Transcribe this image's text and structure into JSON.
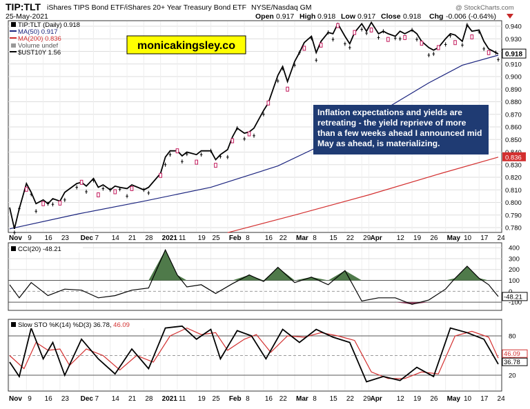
{
  "header": {
    "symbol": "TIP:TLT",
    "description": "iShares TIPS Bond ETF/iShares 20+ Year Treasury Bond ETF",
    "exchange": "NYSE/Nasdaq GM",
    "date": "25-May-2021",
    "watermark": "@ StockCharts.com",
    "open_label": "Open",
    "open": "0.917",
    "high_label": "High",
    "high": "0.918",
    "low_label": "Low",
    "low": "0.917",
    "close_label": "Close",
    "close": "0.918",
    "chg_label": "Chg",
    "chg": "-0.006 (-0.64%)"
  },
  "legend": [
    {
      "text": "TIP:TLT (Daily) 0.918",
      "color": "#000000"
    },
    {
      "text": "MA(50) 0.917",
      "color": "#1a237e"
    },
    {
      "text": "MA(200) 0.836",
      "color": "#d32f2f"
    },
    {
      "text": "Volume undef",
      "color": "#888888"
    },
    {
      "text": "$UST10Y 1.56",
      "color": "#000000"
    }
  ],
  "badge": "monicakingsley.co",
  "annotation": "Inflation expectations and yields are retreating - the yield reprieve of more than a few weeks ahead I announced mid May as ahead, is materializing.",
  "price_axis": {
    "ticks": [
      "0.940",
      "0.930",
      "0.920",
      "0.910",
      "0.900",
      "0.890",
      "0.880",
      "0.870",
      "0.860",
      "0.850",
      "0.840",
      "0.830",
      "0.820",
      "0.810",
      "0.800",
      "0.790",
      "0.780"
    ],
    "last_price_tag": "0.918",
    "ma200_tag": "0.836"
  },
  "x_axis": {
    "labels": [
      "Nov",
      "9",
      "16",
      "23",
      "Dec",
      "7",
      "14",
      "21",
      "28",
      "2021",
      "11",
      "19",
      "25",
      "Feb",
      "8",
      "16",
      "22",
      "Mar",
      "8",
      "15",
      "22",
      "29",
      "Apr",
      "12",
      "19",
      "26",
      "May",
      "10",
      "17",
      "24"
    ],
    "bold": [
      "Nov",
      "Dec",
      "2021",
      "Feb",
      "Mar",
      "Apr",
      "May"
    ]
  },
  "cci": {
    "title": "CCI(20) -48.21",
    "ticks": [
      "400",
      "300",
      "200",
      "100",
      "0",
      "-100"
    ],
    "value_tag": "-48.21"
  },
  "sto": {
    "title_prefix": "Slow STO %K(14) %D(3) 36.78, ",
    "title_d": "46.09",
    "ticks": [
      "80",
      "50",
      "20"
    ],
    "d_tag": "46.09",
    "k_tag": "36.78"
  },
  "colors": {
    "price_line": "#000000",
    "ma50": "#1a237e",
    "ma200": "#d32f2f",
    "badge_bg": "#ffff00",
    "annotation_bg": "#1f3b73",
    "cci_fill": "#4f7a4a",
    "up_candle": "#000000",
    "down_candle": "#c2185b"
  },
  "chart_data": {
    "type": "line",
    "title": "TIP:TLT",
    "ylabel": "",
    "ylim": [
      0.775,
      0.945
    ],
    "x_range": [
      "2020-11-02",
      "2021-05-25"
    ],
    "series": [
      {
        "name": "TIP:TLT (Daily) 0.918",
        "x": [
          "2020-11-02",
          "2020-11-04",
          "2020-11-06",
          "2020-11-09",
          "2020-11-11",
          "2020-11-13",
          "2020-11-16",
          "2020-11-18",
          "2020-11-20",
          "2020-11-23",
          "2020-11-25",
          "2020-11-30",
          "2020-12-02",
          "2020-12-04",
          "2020-12-07",
          "2020-12-09",
          "2020-12-11",
          "2020-12-14",
          "2020-12-16",
          "2020-12-18",
          "2020-12-21",
          "2020-12-23",
          "2020-12-28",
          "2020-12-30",
          "2021-01-04",
          "2021-01-06",
          "2021-01-08",
          "2021-01-11",
          "2021-01-13",
          "2021-01-15",
          "2021-01-19",
          "2021-01-21",
          "2021-01-25",
          "2021-01-27",
          "2021-01-29",
          "2021-02-01",
          "2021-02-03",
          "2021-02-05",
          "2021-02-08",
          "2021-02-10",
          "2021-02-12",
          "2021-02-16",
          "2021-02-18",
          "2021-02-22",
          "2021-02-24",
          "2021-02-26",
          "2021-03-01",
          "2021-03-03",
          "2021-03-05",
          "2021-03-08",
          "2021-03-10",
          "2021-03-12",
          "2021-03-15",
          "2021-03-17",
          "2021-03-19",
          "2021-03-22",
          "2021-03-24",
          "2021-03-26",
          "2021-03-29",
          "2021-03-31",
          "2021-04-02",
          "2021-04-05",
          "2021-04-07",
          "2021-04-09",
          "2021-04-12",
          "2021-04-14",
          "2021-04-16",
          "2021-04-19",
          "2021-04-21",
          "2021-04-23",
          "2021-04-26",
          "2021-04-28",
          "2021-04-30",
          "2021-05-03",
          "2021-05-05",
          "2021-05-07",
          "2021-05-10",
          "2021-05-12",
          "2021-05-14",
          "2021-05-17",
          "2021-05-19",
          "2021-05-21",
          "2021-05-24",
          "2021-05-25"
        ],
        "values": [
          0.796,
          0.779,
          0.795,
          0.815,
          0.808,
          0.799,
          0.802,
          0.799,
          0.803,
          0.801,
          0.808,
          0.815,
          0.816,
          0.813,
          0.819,
          0.812,
          0.814,
          0.81,
          0.813,
          0.812,
          0.811,
          0.814,
          0.81,
          0.812,
          0.823,
          0.836,
          0.841,
          0.841,
          0.837,
          0.84,
          0.838,
          0.841,
          0.841,
          0.834,
          0.838,
          0.842,
          0.852,
          0.859,
          0.855,
          0.856,
          0.859,
          0.873,
          0.879,
          0.901,
          0.908,
          0.896,
          0.912,
          0.919,
          0.927,
          0.932,
          0.919,
          0.928,
          0.935,
          0.934,
          0.942,
          0.932,
          0.926,
          0.935,
          0.942,
          0.936,
          0.943,
          0.934,
          0.936,
          0.934,
          0.932,
          0.936,
          0.934,
          0.937,
          0.934,
          0.928,
          0.923,
          0.921,
          0.923,
          0.93,
          0.934,
          0.933,
          0.928,
          0.941,
          0.936,
          0.937,
          0.928,
          0.922,
          0.919,
          0.918
        ]
      },
      {
        "name": "MA(50) 0.917",
        "x": [
          "2020-11-02",
          "2020-12-01",
          "2020-12-28",
          "2021-01-25",
          "2021-02-22",
          "2021-03-15",
          "2021-04-05",
          "2021-04-26",
          "2021-05-10",
          "2021-05-25"
        ],
        "values": [
          0.779,
          0.791,
          0.801,
          0.812,
          0.829,
          0.848,
          0.871,
          0.895,
          0.909,
          0.917
        ]
      },
      {
        "name": "MA(200) 0.836",
        "x": [
          "2021-02-01",
          "2021-03-01",
          "2021-04-01",
          "2021-05-01",
          "2021-05-25"
        ],
        "values": [
          0.776,
          0.79,
          0.806,
          0.823,
          0.836
        ]
      }
    ],
    "indicators": [
      {
        "name": "CCI(20) -48.21",
        "ylim": [
          -150,
          420
        ],
        "x": [
          "2020-11-02",
          "2020-11-06",
          "2020-11-11",
          "2020-11-18",
          "2020-11-25",
          "2020-12-02",
          "2020-12-09",
          "2020-12-16",
          "2020-12-23",
          "2020-12-30",
          "2021-01-06",
          "2021-01-11",
          "2021-01-15",
          "2021-01-21",
          "2021-01-27",
          "2021-02-03",
          "2021-02-10",
          "2021-02-16",
          "2021-02-22",
          "2021-03-01",
          "2021-03-08",
          "2021-03-15",
          "2021-03-22",
          "2021-03-29",
          "2021-04-05",
          "2021-04-12",
          "2021-04-19",
          "2021-04-26",
          "2021-05-03",
          "2021-05-07",
          "2021-05-12",
          "2021-05-17",
          "2021-05-21",
          "2021-05-25"
        ],
        "values": [
          60,
          -60,
          80,
          -40,
          20,
          10,
          -60,
          -40,
          10,
          30,
          380,
          150,
          40,
          60,
          -20,
          70,
          150,
          90,
          220,
          80,
          130,
          60,
          190,
          -90,
          -60,
          -60,
          -120,
          -80,
          20,
          120,
          230,
          120,
          60,
          -48
        ]
      },
      {
        "name": "Slow STO %K(14) 36.78",
        "ylim": [
          0,
          100
        ],
        "x": [
          "2020-11-02",
          "2020-11-06",
          "2020-11-11",
          "2020-11-16",
          "2020-11-20",
          "2020-11-25",
          "2020-12-02",
          "2020-12-09",
          "2020-12-16",
          "2020-12-23",
          "2020-12-30",
          "2021-01-06",
          "2021-01-13",
          "2021-01-19",
          "2021-01-25",
          "2021-01-29",
          "2021-02-05",
          "2021-02-11",
          "2021-02-17",
          "2021-02-24",
          "2021-03-03",
          "2021-03-10",
          "2021-03-17",
          "2021-03-24",
          "2021-03-31",
          "2021-04-07",
          "2021-04-14",
          "2021-04-21",
          "2021-04-28",
          "2021-05-05",
          "2021-05-12",
          "2021-05-19",
          "2021-05-25"
        ],
        "values": [
          40,
          18,
          92,
          45,
          70,
          20,
          75,
          45,
          22,
          60,
          30,
          92,
          95,
          75,
          90,
          45,
          88,
          80,
          45,
          90,
          70,
          90,
          78,
          70,
          10,
          18,
          12,
          32,
          18,
          92,
          85,
          75,
          37
        ]
      },
      {
        "name": "%D(3) 46.09",
        "ylim": [
          0,
          100
        ],
        "x": [
          "2020-11-02",
          "2020-11-08",
          "2020-11-13",
          "2020-11-18",
          "2020-11-23",
          "2020-11-27",
          "2020-12-04",
          "2020-12-11",
          "2020-12-18",
          "2020-12-25",
          "2021-01-01",
          "2021-01-08",
          "2021-01-15",
          "2021-01-21",
          "2021-01-27",
          "2021-02-01",
          "2021-02-08",
          "2021-02-13",
          "2021-02-19",
          "2021-02-26",
          "2021-03-05",
          "2021-03-12",
          "2021-03-19",
          "2021-03-26",
          "2021-04-02",
          "2021-04-09",
          "2021-04-16",
          "2021-04-23",
          "2021-04-30",
          "2021-05-07",
          "2021-05-14",
          "2021-05-21",
          "2021-05-25"
        ],
        "values": [
          50,
          30,
          70,
          58,
          60,
          35,
          60,
          50,
          28,
          50,
          40,
          80,
          92,
          82,
          85,
          58,
          75,
          82,
          55,
          80,
          78,
          85,
          80,
          73,
          25,
          15,
          15,
          25,
          22,
          80,
          87,
          78,
          46
        ]
      }
    ]
  }
}
